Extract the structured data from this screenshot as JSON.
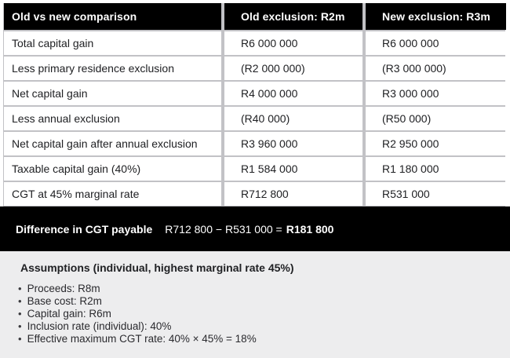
{
  "table": {
    "headers": [
      "Old vs new comparison",
      "Old exclusion: R2m",
      "New exclusion: R3m"
    ],
    "rows": [
      {
        "label": "Total capital gain",
        "old": "R6 000 000",
        "new": "R6 000 000"
      },
      {
        "label": "Less primary residence exclusion",
        "old": "(R2 000 000)",
        "new": "(R3 000 000)"
      },
      {
        "label": "Net capital gain",
        "old": "R4 000 000",
        "new": "R3 000 000"
      },
      {
        "label": "Less annual exclusion",
        "old": "(R40 000)",
        "new": "(R50 000)"
      },
      {
        "label": "Net capital gain after annual exclusion",
        "old": "R3 960 000",
        "new": "R2 950 000"
      },
      {
        "label": "Taxable capital gain (40%)",
        "old": "R1 584 000",
        "new": "R1 180 000"
      },
      {
        "label": "CGT at 45% marginal rate",
        "old": "R712 800",
        "new": "R531 000"
      }
    ]
  },
  "difference": {
    "label": "Difference in CGT payable",
    "calculation": "R712 800 − R531 000 =",
    "result": "R181 800"
  },
  "assumptions": {
    "title": "Assumptions (individual, highest marginal rate 45%)",
    "items": [
      "Proceeds: R8m",
      "Base cost: R2m",
      "Capital gain: R6m",
      "Inclusion rate (individual): 40%",
      "Effective maximum CGT rate: 40% × 45% = 18%"
    ]
  },
  "colors": {
    "header_background": "#000000",
    "header_text": "#ffffff",
    "cell_border": "#c2c2c6",
    "difference_bar_background": "#000000",
    "assumptions_background": "#ededee",
    "body_text": "#202124"
  }
}
